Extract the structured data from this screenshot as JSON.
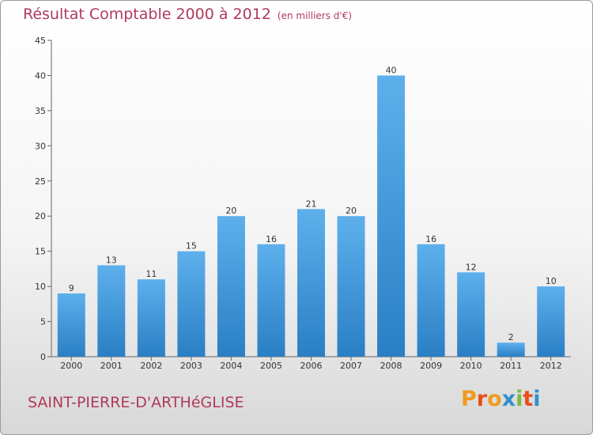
{
  "header": {
    "title": "Résultat Comptable 2000 à 2012",
    "subtitle": "(en milliers d'€)"
  },
  "footer": {
    "commune": "SAINT-PIERRE-D'ARTHéGLISE",
    "logo": [
      "P",
      "r",
      "o",
      "x",
      "i",
      "t",
      "i"
    ]
  },
  "colors": {
    "bar_top": "#5eb0ec",
    "bar_bottom": "#2a7fc4",
    "title": "#b03a5c",
    "logo": [
      "#f29a1f",
      "#e94e1b",
      "#f29a1f",
      "#2f8fd0",
      "#7cb93c",
      "#e94e1b",
      "#2f8fd0"
    ]
  },
  "chart_data": {
    "type": "bar",
    "title": "Résultat Comptable 2000 à 2012",
    "subtitle": "(en milliers d'€)",
    "categories": [
      "2000",
      "2001",
      "2002",
      "2003",
      "2004",
      "2005",
      "2006",
      "2007",
      "2008",
      "2009",
      "2010",
      "2011",
      "2012"
    ],
    "values": [
      9,
      13,
      11,
      15,
      20,
      16,
      21,
      20,
      40,
      16,
      12,
      2,
      10
    ],
    "ylim": [
      0,
      45
    ],
    "yticks": [
      0,
      5,
      10,
      15,
      20,
      25,
      30,
      35,
      40,
      45
    ],
    "xlabel": "",
    "ylabel": "",
    "grid": false,
    "data_labels": true
  }
}
